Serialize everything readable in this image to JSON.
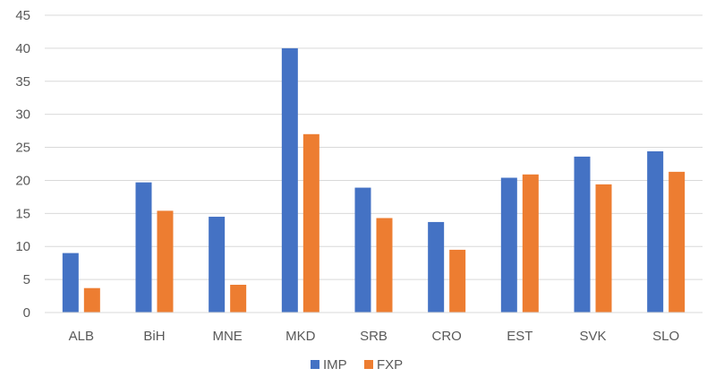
{
  "chart_data": {
    "type": "bar",
    "title": "",
    "xlabel": "",
    "ylabel": "",
    "categories": [
      "ALB",
      "BiH",
      "MNE",
      "MKD",
      "SRB",
      "CRO",
      "EST",
      "SVK",
      "SLO"
    ],
    "series": [
      {
        "name": "IMP",
        "color": "#4472C4",
        "values": [
          9.0,
          19.7,
          14.5,
          40.0,
          18.9,
          13.7,
          20.4,
          23.6,
          24.4
        ]
      },
      {
        "name": "FXP",
        "color": "#ED7D31",
        "values": [
          3.7,
          15.4,
          4.2,
          27.0,
          14.3,
          9.5,
          20.9,
          19.4,
          21.3
        ]
      }
    ],
    "ylim": [
      0,
      45
    ],
    "yticks": [
      0,
      5,
      10,
      15,
      20,
      25,
      30,
      35,
      40,
      45
    ],
    "grid": true,
    "legend_position": "bottom"
  }
}
